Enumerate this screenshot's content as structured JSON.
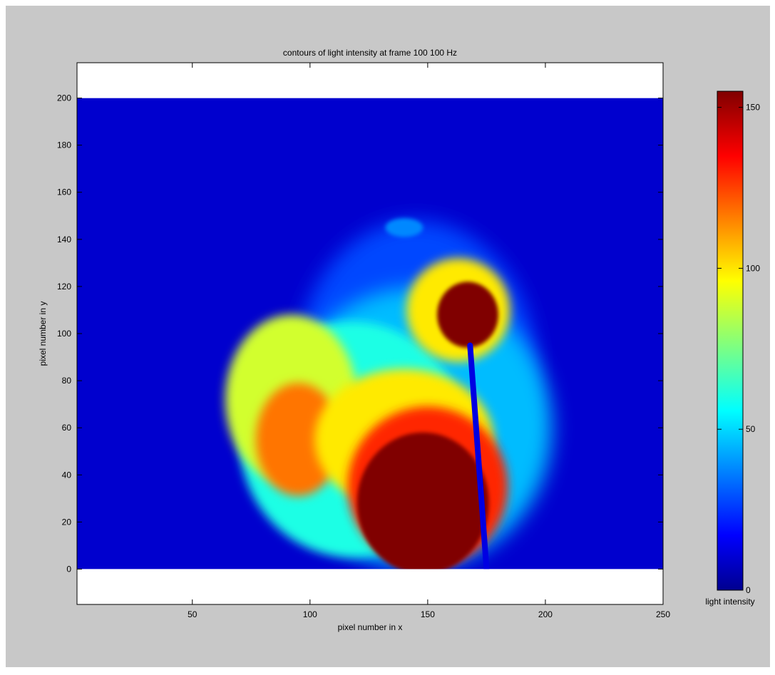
{
  "chart_data": {
    "type": "heatmap",
    "title": "contours of light intensity at frame 100 100 Hz",
    "xlabel": "pixel number in x",
    "ylabel": "pixel number in y",
    "xlim": [
      1,
      250
    ],
    "ylim": [
      -15,
      215
    ],
    "data_extent": {
      "x": [
        1,
        250
      ],
      "y": [
        0,
        200
      ]
    },
    "xticks": [
      50,
      100,
      150,
      200,
      250
    ],
    "yticks": [
      0,
      20,
      40,
      60,
      80,
      100,
      120,
      140,
      160,
      180,
      200
    ],
    "grid": false,
    "colormap": "jet",
    "colorbar": {
      "label": "light intensity",
      "range": [
        0,
        155
      ],
      "ticks": [
        0,
        50,
        100,
        150
      ],
      "placement": "right"
    },
    "features": [
      {
        "name": "background",
        "intensity": 12
      },
      {
        "name": "halo",
        "x": 145,
        "y": 60,
        "rx": 68,
        "ry": 70,
        "intensity": 48
      },
      {
        "name": "left-yellow-region",
        "x": 92,
        "y": 72,
        "rx": 28,
        "ry": 36,
        "intensity": 90
      },
      {
        "name": "center-hot-core",
        "x": 148,
        "y": 28,
        "rx": 28,
        "ry": 30,
        "intensity": 155
      },
      {
        "name": "hot-blob",
        "x": 167,
        "y": 108,
        "rx": 13,
        "ry": 14,
        "intensity": 155
      },
      {
        "name": "probe",
        "x_bottom": 175,
        "x_top": 168,
        "y_top": 95,
        "intensity": 15
      }
    ]
  }
}
